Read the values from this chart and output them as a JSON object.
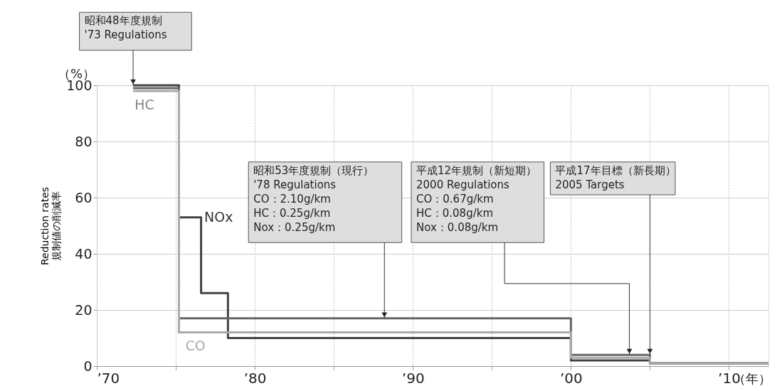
{
  "chart_data": {
    "type": "step",
    "ylabel": "Reduction rates\n規制値の削減率",
    "xlim": [
      1970,
      2012.5
    ],
    "ylim": [
      0,
      100
    ],
    "xticks": [
      {
        "value": 1970,
        "label": "’70"
      },
      {
        "value": 1975,
        "label": null
      },
      {
        "value": 1980,
        "label": "’80"
      },
      {
        "value": 1985,
        "label": null
      },
      {
        "value": 1990,
        "label": "’90"
      },
      {
        "value": 1995,
        "label": null
      },
      {
        "value": 2000,
        "label": "’00"
      },
      {
        "value": 2005,
        "label": null
      },
      {
        "value": 2010,
        "label": "’10"
      }
    ],
    "xlabel": "（年）",
    "yticks": [
      0,
      20,
      40,
      60,
      80,
      100
    ],
    "grid": true,
    "marker": "none",
    "line_style": "solid",
    "series": [
      {
        "name": "NOx",
        "color": "#444444",
        "x": [
          1972.3,
          1975.2,
          1976.6,
          1978.3,
          2000,
          2005,
          2012.5
        ],
        "values": [
          100,
          53,
          26,
          10,
          2,
          1,
          1
        ]
      },
      {
        "name": "HC",
        "color": "#666666",
        "x": [
          1972.3,
          1975.2,
          2000,
          2005,
          2012.5
        ],
        "values": [
          99,
          17,
          4,
          1,
          1
        ]
      },
      {
        "name": "CO",
        "color": "#aaaaaa",
        "x": [
          1972.3,
          1975.2,
          2000,
          2005,
          2012.5
        ],
        "values": [
          98,
          12,
          3,
          1,
          1
        ]
      }
    ],
    "annotations": [
      "（%）",
      {
        "text": "昭和48年度規制\n'73 Regulations",
        "x": 1972.3,
        "y": 100
      },
      {
        "text": "昭和53年度規制（現行）\n'78 Regulations\n   CO：2.10g/km\n   HC：0.25g/km\n   Nox：0.25g/km",
        "x": 1988.2,
        "y": 17
      },
      {
        "text": "平成12年規制（新短期）\n2000 Regulations\n   CO：0.67g/km\n   HC：0.08g/km\n   Nox：0.08g/km",
        "x": 2003.7,
        "y": 4
      },
      {
        "text": "平成17年目標（新長期）\n2005 Targets",
        "x": 2005,
        "y": 4
      }
    ]
  }
}
